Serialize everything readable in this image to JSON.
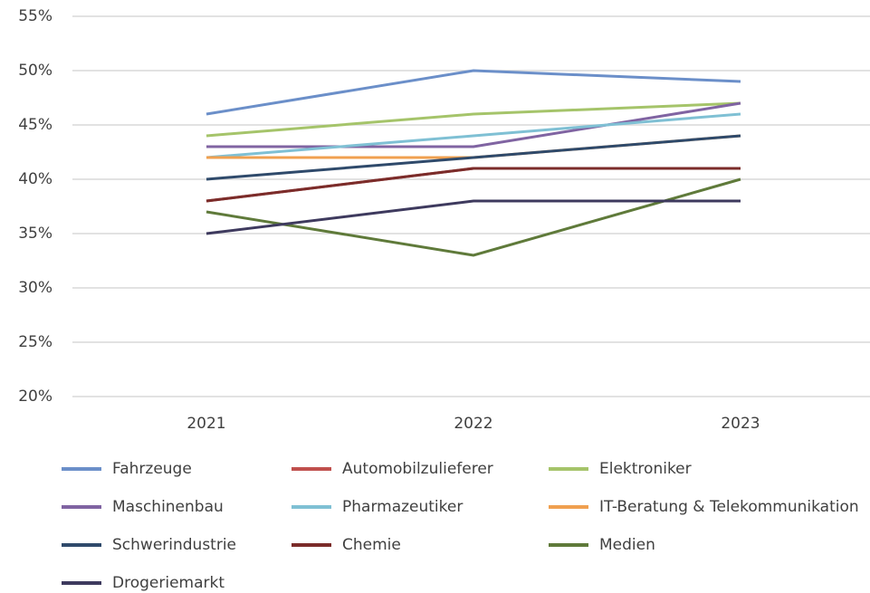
{
  "chart_data": {
    "type": "line",
    "categories": [
      "2021",
      "2022",
      "2023"
    ],
    "series": [
      {
        "name": "Fahrzeuge",
        "color": "#6b8fc9",
        "values": [
          46,
          50,
          49
        ]
      },
      {
        "name": "Automobilzulieferer",
        "color": "#c0504d",
        "values": [
          38,
          41,
          41
        ]
      },
      {
        "name": "Elektroniker",
        "color": "#a5c46a",
        "values": [
          44,
          46,
          47
        ]
      },
      {
        "name": "Maschinenbau",
        "color": "#8064a2",
        "values": [
          43,
          43,
          47
        ]
      },
      {
        "name": "Pharmazeutiker",
        "color": "#7fc0d4",
        "values": [
          42,
          44,
          46
        ]
      },
      {
        "name": "IT-Beratung & Telekommunikation",
        "color": "#f0a050",
        "values": [
          42,
          42,
          44
        ]
      },
      {
        "name": "Schwerindustrie",
        "color": "#2f4a6b",
        "values": [
          40,
          42,
          44
        ]
      },
      {
        "name": "Chemie",
        "color": "#7b2c2a",
        "values": [
          38,
          41,
          41
        ]
      },
      {
        "name": "Medien",
        "color": "#5f7a3a",
        "values": [
          37,
          33,
          40
        ]
      },
      {
        "name": "Drogeriemarkt",
        "color": "#3e3a5e",
        "values": [
          35,
          38,
          38
        ]
      }
    ],
    "ylim": [
      20,
      55
    ],
    "yticks": [
      {
        "value": 20,
        "label": "20%"
      },
      {
        "value": 25,
        "label": "25%"
      },
      {
        "value": 30,
        "label": "30%"
      },
      {
        "value": 35,
        "label": "35%"
      },
      {
        "value": 40,
        "label": "40%"
      },
      {
        "value": 45,
        "label": "45%"
      },
      {
        "value": 50,
        "label": "50%"
      },
      {
        "value": 55,
        "label": "55%"
      }
    ],
    "grid": true,
    "legend": "bottom"
  }
}
